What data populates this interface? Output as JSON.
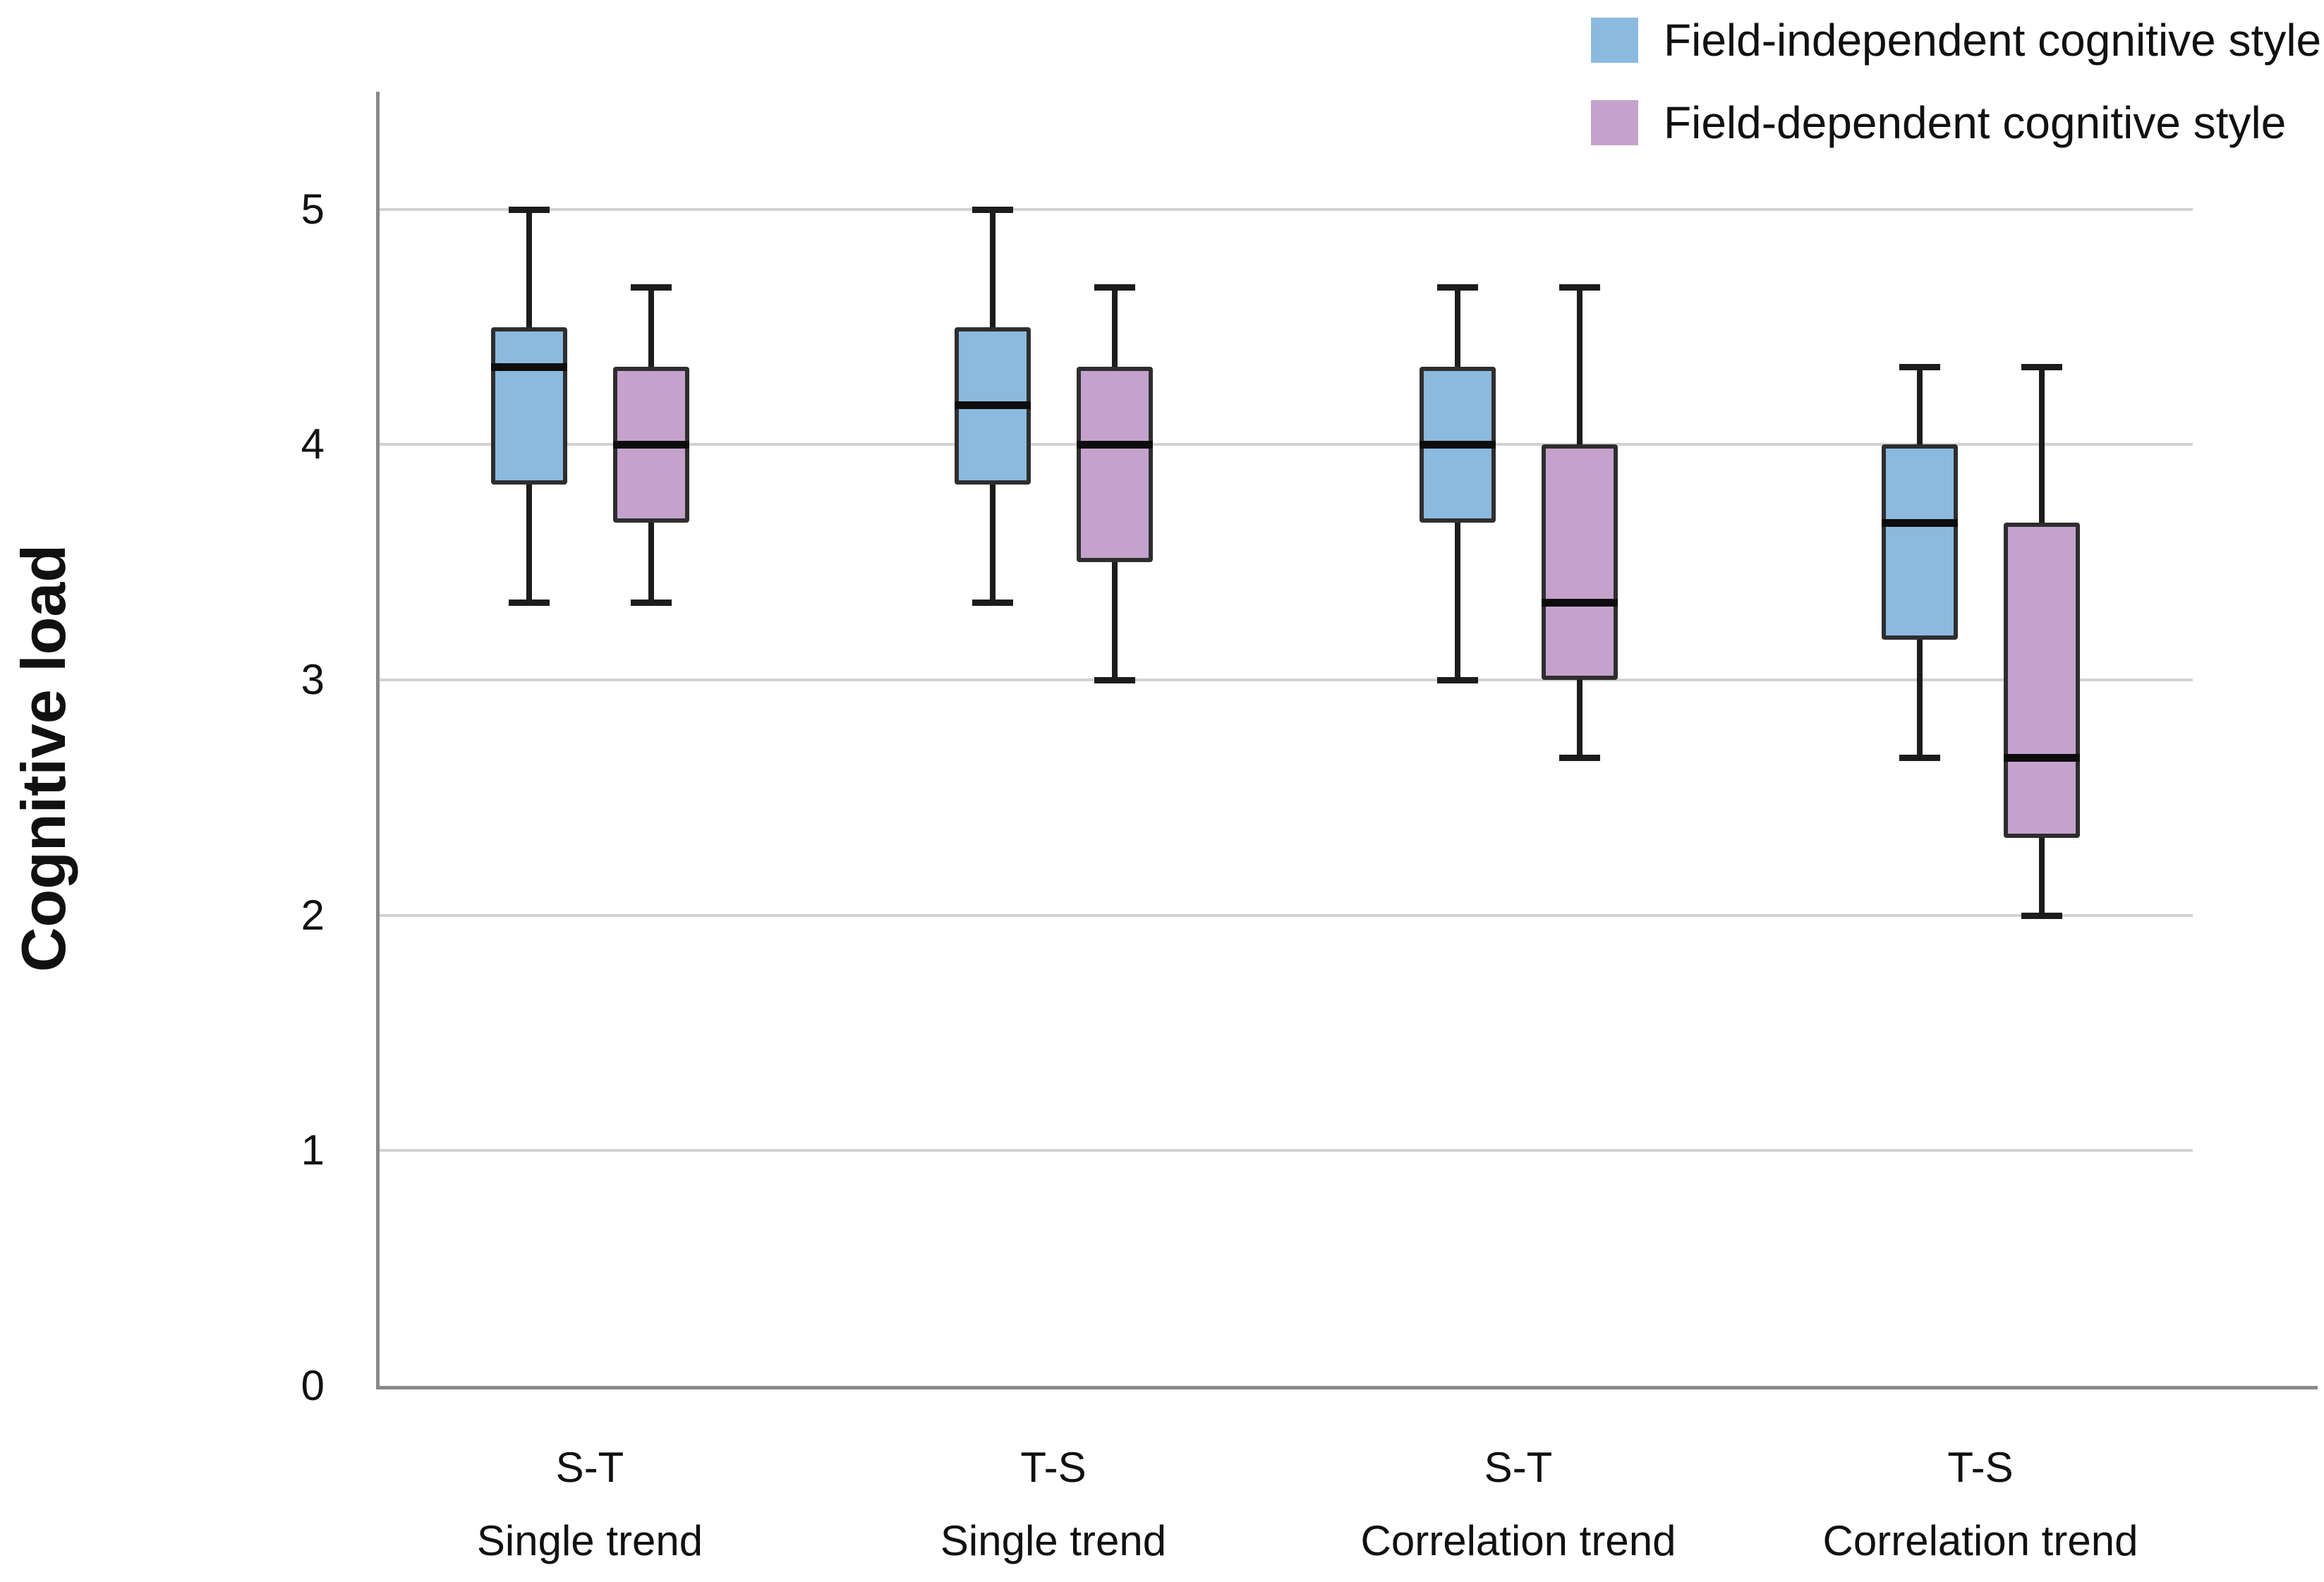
{
  "figure": {
    "background": "#ffffff"
  },
  "colors": {
    "background": "#ffffff",
    "grid": "#d2d2d2",
    "axis": "#8a8a8a",
    "box_border": "#2e2e2e",
    "median": "#0d0d0d",
    "whisker": "#1c1c1c",
    "text": "#111111",
    "field_independent": "#8cb9de",
    "field_dependent": "#c4a2cc"
  },
  "legend": [
    {
      "label": "Field-independent cognitive style",
      "color": "#8cb9de"
    },
    {
      "label": "Field-dependent cognitive style",
      "color": "#c4a2cc"
    }
  ],
  "chart_data": {
    "type": "boxplot",
    "title": "",
    "xlabel": "",
    "ylabel": "Cognitive load",
    "ylim": [
      0,
      5.5
    ],
    "yticks": [
      0,
      1,
      2,
      3,
      4,
      5
    ],
    "grid": "horizontal gridlines at 1-5",
    "legend_position": "top-right",
    "categories": [
      {
        "line1": "S-T",
        "line2": "Single trend"
      },
      {
        "line1": "T-S",
        "line2": "Single trend"
      },
      {
        "line1": "S-T",
        "line2": "Correlation trend"
      },
      {
        "line1": "T-S",
        "line2": "Correlation trend"
      }
    ],
    "series": [
      {
        "name": "Field-independent cognitive style",
        "color": "#8cb9de",
        "boxes": [
          {
            "min": 3.33,
            "q1": 3.83,
            "median": 4.33,
            "q3": 4.5,
            "max": 5.0
          },
          {
            "min": 3.33,
            "q1": 3.83,
            "median": 4.17,
            "q3": 4.5,
            "max": 5.0
          },
          {
            "min": 3.0,
            "q1": 3.67,
            "median": 4.0,
            "q3": 4.33,
            "max": 4.67
          },
          {
            "min": 2.67,
            "q1": 3.17,
            "median": 3.67,
            "q3": 4.0,
            "max": 4.33
          }
        ]
      },
      {
        "name": "Field-dependent cognitive style",
        "color": "#c4a2cc",
        "boxes": [
          {
            "min": 3.33,
            "q1": 3.67,
            "median": 4.0,
            "q3": 4.33,
            "max": 4.67
          },
          {
            "min": 3.0,
            "q1": 3.5,
            "median": 4.0,
            "q3": 4.33,
            "max": 4.67
          },
          {
            "min": 2.67,
            "q1": 3.0,
            "median": 3.33,
            "q3": 4.0,
            "max": 4.67
          },
          {
            "min": 2.0,
            "q1": 2.33,
            "median": 2.67,
            "q3": 3.67,
            "max": 4.33
          }
        ]
      }
    ]
  }
}
